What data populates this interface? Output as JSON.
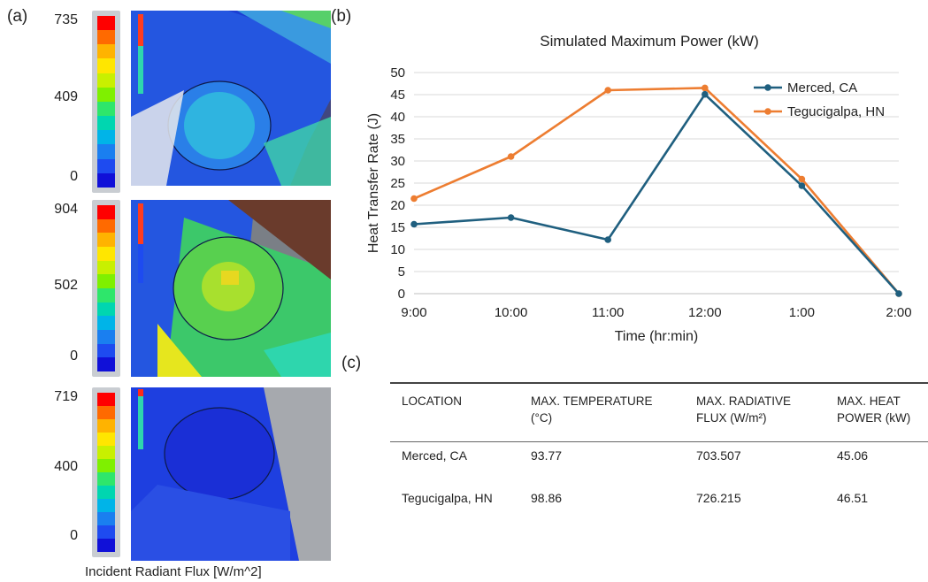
{
  "panel_labels": {
    "a": "(a)",
    "b": "(b)",
    "c": "(c)"
  },
  "simulations": [
    {
      "scale_max": "735",
      "scale_mid": "409",
      "scale_min": "0"
    },
    {
      "scale_max": "904",
      "scale_mid": "502",
      "scale_min": "0"
    },
    {
      "scale_max": "719",
      "scale_mid": "400",
      "scale_min": "0"
    }
  ],
  "colorbar_colors": [
    "#ff0000",
    "#ff6a00",
    "#ffb300",
    "#ffe600",
    "#c8f000",
    "#7ff000",
    "#2ee66b",
    "#00d6b0",
    "#00b4e8",
    "#1a7ff0",
    "#1e4bf0",
    "#1010d8"
  ],
  "sim_caption": "Incident Radiant Flux [W/m^2]",
  "chart_data": {
    "type": "line",
    "title": "Simulated Maximum Power (kW)",
    "xlabel": "Time (hr:min)",
    "ylabel": "Heat Transfer Rate (J)",
    "categories": [
      "9:00",
      "10:00",
      "11:00",
      "12:00",
      "1:00",
      "2:00"
    ],
    "ylim": [
      0,
      50
    ],
    "yticks": [
      0,
      5,
      10,
      15,
      20,
      25,
      30,
      35,
      40,
      45,
      50
    ],
    "grid": "horizontal",
    "legend_position": "top-right",
    "series": [
      {
        "name": "Merced, CA",
        "color": "#1f5f7f",
        "values": [
          15.7,
          17.2,
          12.2,
          45.06,
          24.4,
          0
        ]
      },
      {
        "name": "Tegucigalpa, HN",
        "color": "#ed7d31",
        "values": [
          21.5,
          31.0,
          46.0,
          46.51,
          25.9,
          0
        ]
      }
    ]
  },
  "table": {
    "headers": [
      [
        "LOCATION"
      ],
      [
        "MAX. TEMPERATURE",
        "(°C)"
      ],
      [
        "MAX. RADIATIVE",
        "FLUX (W/m²)"
      ],
      [
        "MAX. HEAT",
        "POWER (kW)"
      ]
    ],
    "rows": [
      [
        "Merced, CA",
        "93.77",
        "703.507",
        "45.06"
      ],
      [
        "Tegucigalpa, HN",
        "98.86",
        "726.215",
        "46.51"
      ]
    ]
  }
}
